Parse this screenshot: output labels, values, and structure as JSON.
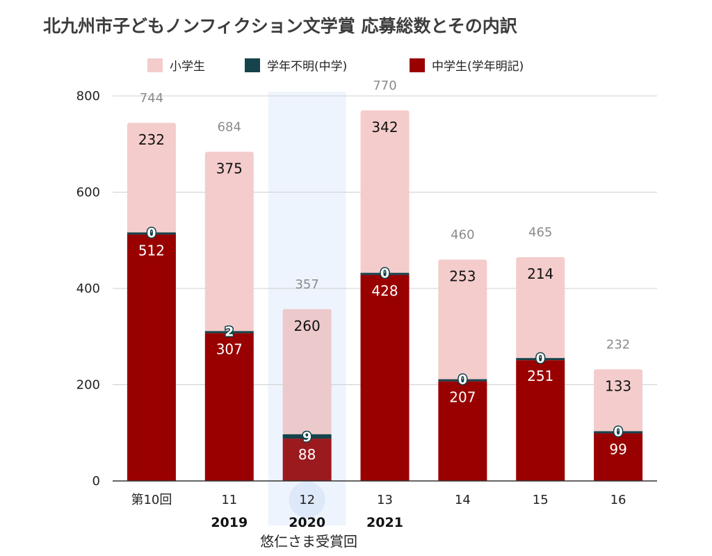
{
  "chart_data": {
    "type": "bar",
    "stacked": true,
    "title": "北九州市子どもノンフィクション文学賞 応募総数とその内訳",
    "categories": [
      "第10回",
      "11",
      "12",
      "13",
      "14",
      "15",
      "16"
    ],
    "years": [
      "",
      "2019",
      "2020",
      "2021",
      "",
      "",
      ""
    ],
    "series": [
      {
        "name": "中学生(学年明記)",
        "color": "#990000",
        "values": [
          512,
          307,
          88,
          428,
          207,
          251,
          99
        ]
      },
      {
        "name": "学年不明(中学)",
        "color": "#16434b",
        "values": [
          0,
          2,
          9,
          0,
          0,
          0,
          0
        ]
      },
      {
        "name": "小学生",
        "color": "#f4cccc",
        "values": [
          232,
          375,
          260,
          342,
          253,
          214,
          133
        ]
      }
    ],
    "legend_order": [
      "小学生",
      "学年不明(中学)",
      "中学生(学年明記)"
    ],
    "legend_position": "top",
    "totals": [
      744,
      684,
      357,
      770,
      460,
      465,
      232
    ],
    "y_ticks": [
      0,
      200,
      400,
      600,
      800
    ],
    "ylim": [
      0,
      800
    ],
    "grid": true,
    "highlight_category": "12",
    "highlight_color": "#eef4fd",
    "annotation": "悠仁さま受賞回"
  }
}
